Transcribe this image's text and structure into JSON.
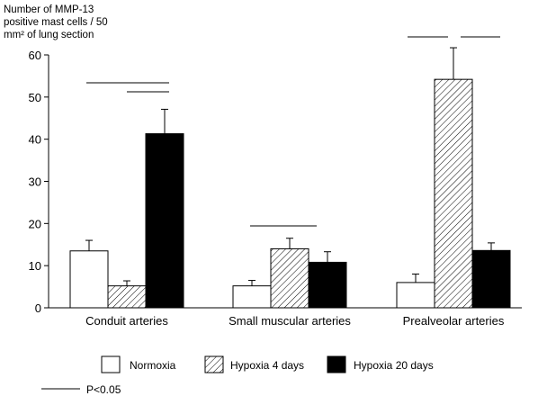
{
  "chart_data": {
    "type": "bar",
    "ylabel_lines": [
      "Number of MMP-13",
      "positive mast cells / 50",
      "mm² of lung section"
    ],
    "categories": [
      "Conduit arteries",
      "Small muscular arteries",
      "Prealveolar arteries"
    ],
    "ylim": [
      0,
      60
    ],
    "yticks": [
      0,
      10,
      20,
      30,
      40,
      50,
      60
    ],
    "series": [
      {
        "name": "Normoxia",
        "pattern": "white",
        "values": [
          13.5,
          5.2,
          6.0
        ],
        "errors": [
          2.5,
          1.3,
          2.0
        ]
      },
      {
        "name": "Hypoxia 4 days",
        "pattern": "hatched",
        "values": [
          5.2,
          14.0,
          54.2
        ],
        "errors": [
          1.2,
          2.5,
          7.5
        ]
      },
      {
        "name": "Hypoxia 20 days",
        "pattern": "black",
        "values": [
          41.3,
          10.8,
          13.6
        ],
        "errors": [
          5.8,
          2.5,
          1.8
        ]
      }
    ],
    "significance_note": "P<0.05",
    "grid": false,
    "legend_position": "bottom"
  }
}
